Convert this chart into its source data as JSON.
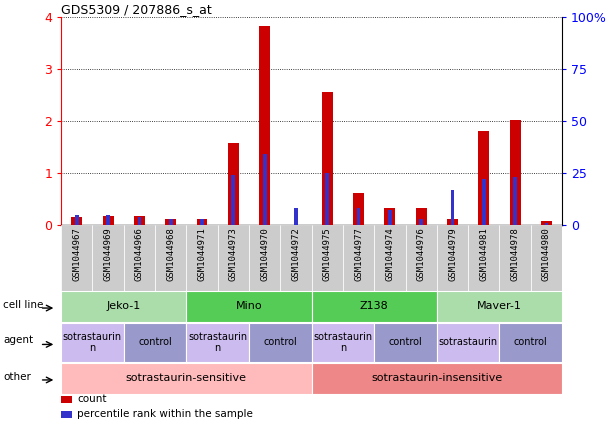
{
  "title": "GDS5309 / 207886_s_at",
  "samples": [
    "GSM1044967",
    "GSM1044969",
    "GSM1044966",
    "GSM1044968",
    "GSM1044971",
    "GSM1044973",
    "GSM1044970",
    "GSM1044972",
    "GSM1044975",
    "GSM1044977",
    "GSM1044974",
    "GSM1044976",
    "GSM1044979",
    "GSM1044981",
    "GSM1044978",
    "GSM1044980"
  ],
  "count_values": [
    0.15,
    0.18,
    0.17,
    0.12,
    0.12,
    1.58,
    3.82,
    0.0,
    2.55,
    0.62,
    0.32,
    0.32,
    0.12,
    1.8,
    2.02,
    0.07
  ],
  "percentile_values": [
    5,
    5,
    4,
    3,
    3,
    24,
    34,
    8,
    25,
    8,
    7,
    3,
    17,
    22,
    23,
    1
  ],
  "ylim_left": [
    0,
    4
  ],
  "ylim_right": [
    0,
    100
  ],
  "yticks_left": [
    0,
    1,
    2,
    3,
    4
  ],
  "ytick_labels_left": [
    "0",
    "1",
    "2",
    "3",
    "4"
  ],
  "yticks_right": [
    0,
    25,
    50,
    75,
    100
  ],
  "ytick_labels_right": [
    "0",
    "25",
    "50",
    "75",
    "100%"
  ],
  "bar_color": "#cc0000",
  "percentile_color": "#3333cc",
  "bg_color": "#ffffff",
  "grid_color": "#000000",
  "cell_line_color_light": "#aaddaa",
  "cell_line_color_dark": "#55cc55",
  "agent_staurin_color": "#ccbbee",
  "agent_control_color": "#9999cc",
  "other_sensitive_color": "#ffbbbb",
  "other_insensitive_color": "#ee8888",
  "xtick_box_color": "#cccccc",
  "cell_lines": [
    {
      "label": "Jeko-1",
      "start": 0,
      "end": 3
    },
    {
      "label": "Mino",
      "start": 4,
      "end": 7
    },
    {
      "label": "Z138",
      "start": 8,
      "end": 11
    },
    {
      "label": "Maver-1",
      "start": 12,
      "end": 15
    }
  ],
  "agents": [
    {
      "label": "sotrastaurin\nn",
      "start": 0,
      "end": 1,
      "type": "staurin"
    },
    {
      "label": "control",
      "start": 2,
      "end": 3,
      "type": "control"
    },
    {
      "label": "sotrastaurin\nn",
      "start": 4,
      "end": 5,
      "type": "staurin"
    },
    {
      "label": "control",
      "start": 6,
      "end": 7,
      "type": "control"
    },
    {
      "label": "sotrastaurin\nn",
      "start": 8,
      "end": 9,
      "type": "staurin"
    },
    {
      "label": "control",
      "start": 10,
      "end": 11,
      "type": "control"
    },
    {
      "label": "sotrastaurin",
      "start": 12,
      "end": 13,
      "type": "staurin"
    },
    {
      "label": "control",
      "start": 14,
      "end": 15,
      "type": "control"
    }
  ],
  "others": [
    {
      "label": "sotrastaurin-sensitive",
      "start": 0,
      "end": 7,
      "color_key": "sensitive"
    },
    {
      "label": "sotrastaurin-insensitive",
      "start": 8,
      "end": 15,
      "color_key": "insensitive"
    }
  ],
  "legend_items": [
    {
      "label": "count",
      "color": "#cc0000"
    },
    {
      "label": "percentile rank within the sample",
      "color": "#3333cc"
    }
  ],
  "bar_width": 0.35,
  "percentile_bar_width": 0.12
}
